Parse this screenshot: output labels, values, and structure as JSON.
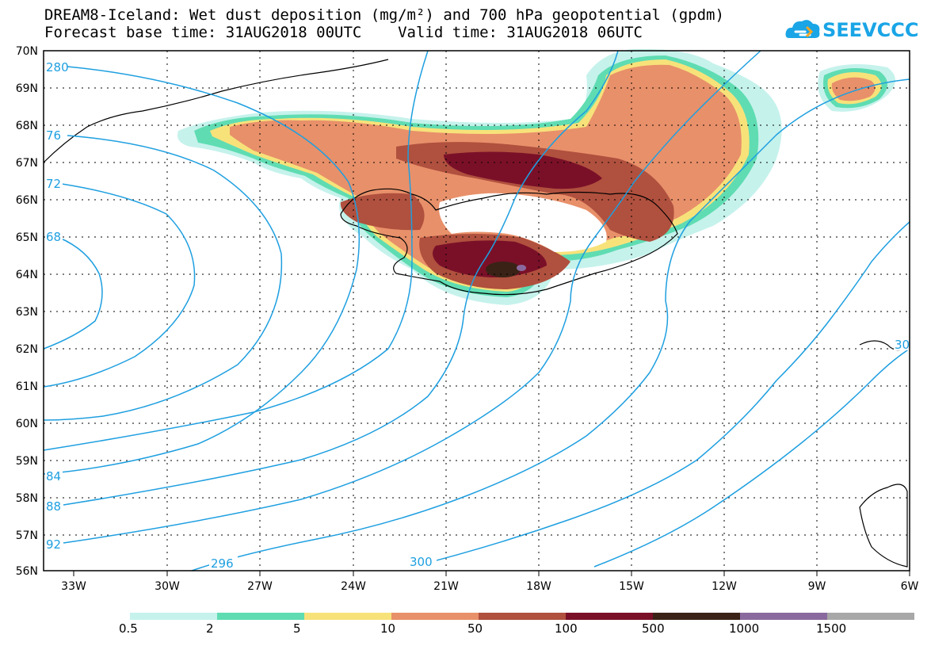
{
  "title": {
    "line1": "DREAM8-Iceland: Wet dust deposition (mg/m²) and 700 hPa geopotential (gpdm)",
    "line2": "Forecast base time: 31AUG2018 00UTC    Valid time: 31AUG2018 06UTC"
  },
  "logo": {
    "text": "SEEVCCC",
    "icon": "cloud-icon"
  },
  "axes": {
    "lat_labels": [
      "70N",
      "69N",
      "68N",
      "67N",
      "66N",
      "65N",
      "64N",
      "63N",
      "62N",
      "61N",
      "60N",
      "59N",
      "58N",
      "57N",
      "56N"
    ],
    "lon_labels": [
      "33W",
      "30W",
      "27W",
      "24W",
      "21W",
      "18W",
      "15W",
      "12W",
      "9W",
      "6W"
    ]
  },
  "colorbar": {
    "labels": [
      "0.5",
      "2",
      "5",
      "10",
      "50",
      "100",
      "500",
      "1000",
      "1500"
    ],
    "colors": [
      "#c6f2ec",
      "#5fdcb2",
      "#f7e27a",
      "#e8906a",
      "#b0503e",
      "#7a1028",
      "#3a2216",
      "#8a6a9e",
      "#a8a8a8"
    ]
  },
  "contours": {
    "color": "#1e9fe0",
    "labels": [
      "280",
      "76",
      "72",
      "68",
      "84",
      "88",
      "92",
      "296",
      "300",
      "30"
    ]
  }
}
